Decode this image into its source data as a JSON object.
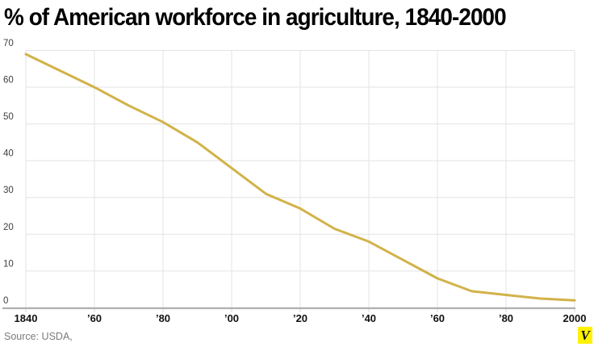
{
  "title": "% of American workforce in agriculture, 1840-2000",
  "source": "Source: USDA,",
  "logo": {
    "label": "V",
    "bg_color": "#fff200",
    "text_color": "#111111"
  },
  "colors": {
    "line": "#d2b249",
    "grid": "#e3e3e3",
    "axis": "#b0b0b0",
    "tick": "#d8d8d8",
    "y_label": "#3f3f3f",
    "x_label": "#111111",
    "title": "#000000",
    "source": "#7b7b7b"
  },
  "chart_data": {
    "type": "line",
    "title": "% of American workforce in agriculture, 1840-2000",
    "x": [
      1840,
      1850,
      1860,
      1870,
      1880,
      1890,
      1900,
      1910,
      1920,
      1930,
      1940,
      1950,
      1960,
      1970,
      1980,
      1990,
      2000
    ],
    "values": [
      69,
      64.5,
      60,
      55,
      50.5,
      45,
      38,
      31,
      27,
      21.5,
      18,
      13,
      8,
      4.5,
      3.5,
      2.5,
      2
    ],
    "series_name": "% of American workforce in agriculture",
    "xlabel": "",
    "ylabel": "",
    "xlim": [
      1840,
      2000
    ],
    "ylim": [
      0,
      70
    ],
    "y_ticks": [
      0,
      10,
      20,
      30,
      40,
      50,
      60,
      70
    ],
    "x_tick_years": [
      1840,
      1860,
      1880,
      1900,
      1920,
      1940,
      1960,
      1980,
      2000
    ],
    "x_tick_labels": [
      "1840",
      "’60",
      "’80",
      "’00",
      "’20",
      "’40",
      "’60",
      "’80",
      "2000"
    ],
    "grid": true,
    "legend": false,
    "line_color": "#d2b249"
  }
}
